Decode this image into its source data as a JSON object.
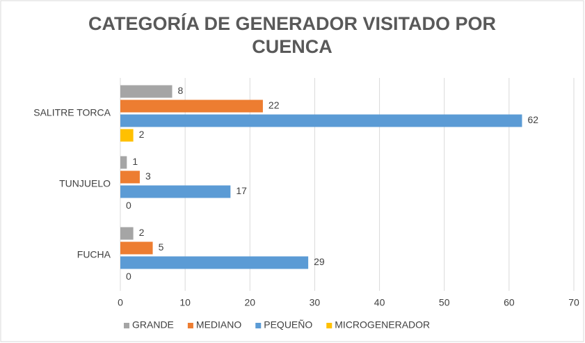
{
  "chart_data": {
    "type": "bar",
    "orientation": "horizontal",
    "title": "CATEGORÍA DE GENERADOR VISITADO POR CUENCA",
    "categories": [
      "SALITRE TORCA",
      "TUNJUELO",
      "FUCHA"
    ],
    "series": [
      {
        "name": "GRANDE",
        "color": "#a5a5a5",
        "values": [
          8,
          1,
          2
        ]
      },
      {
        "name": "MEDIANO",
        "color": "#ed7d31",
        "values": [
          22,
          3,
          5
        ]
      },
      {
        "name": "PEQUEÑO",
        "color": "#5b9bd5",
        "values": [
          62,
          17,
          29
        ]
      },
      {
        "name": "MICROGENERADOR",
        "color": "#ffc000",
        "values": [
          2,
          0,
          0
        ]
      }
    ],
    "xlim": [
      0,
      70
    ],
    "xticks": [
      0,
      10,
      20,
      30,
      40,
      50,
      60,
      70
    ],
    "grid": true,
    "legend": "bottom"
  }
}
